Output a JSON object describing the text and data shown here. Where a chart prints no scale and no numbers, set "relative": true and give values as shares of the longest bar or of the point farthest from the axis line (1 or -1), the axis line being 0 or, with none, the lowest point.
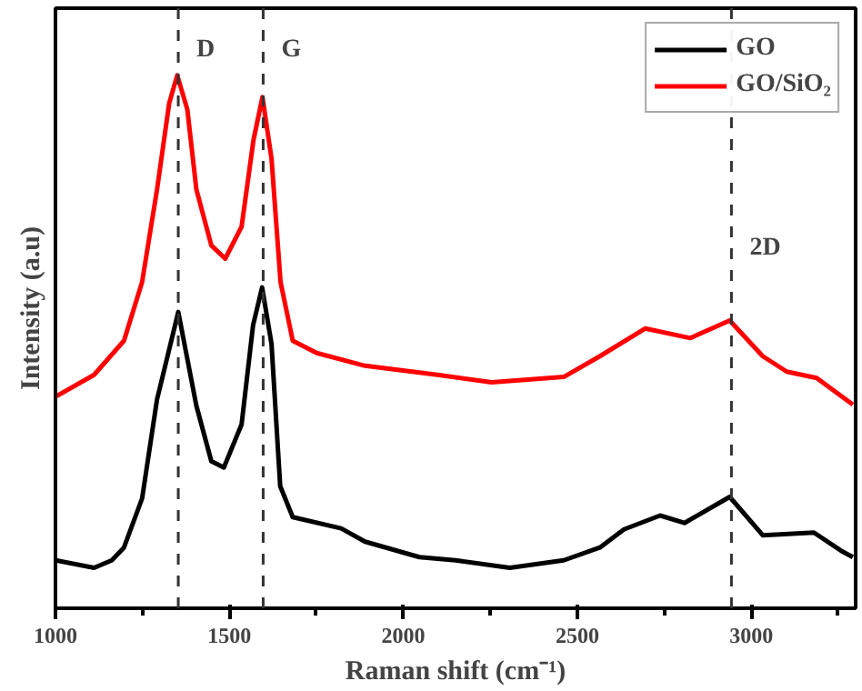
{
  "chart_data": {
    "type": "line",
    "relative": true,
    "xlabel": "Raman shift (cm⁻¹)",
    "ylabel": "Intensity (a.u)",
    "xlim": [
      1000,
      3300
    ],
    "xticks": [
      1000,
      {
        "value": 1250,
        "label": null
      },
      1500,
      {
        "value": 1750,
        "label": null
      },
      2000,
      {
        "value": 2250,
        "label": null
      },
      2500,
      {
        "value": 2750,
        "label": null
      },
      3000,
      {
        "value": 3250,
        "label": null
      }
    ],
    "legend": "top right",
    "grid": false,
    "ref_lines": [
      {
        "axis": "x",
        "value": 1353,
        "label": "D",
        "color": "#333333",
        "line_style": "dashed"
      },
      {
        "axis": "x",
        "value": 1597,
        "label": "G",
        "color": "#333333",
        "line_style": "dashed"
      },
      {
        "axis": "x",
        "value": 2943,
        "label": "2D",
        "color": "#333333",
        "line_style": "dashed"
      }
    ],
    "series": [
      {
        "name": "GO",
        "color": "#000000",
        "x": [
          1000,
          1111,
          1162,
          1197,
          1249,
          1292,
          1353,
          1405,
          1448,
          1484,
          1535,
          1568,
          1594,
          1621,
          1646,
          1682,
          1821,
          1890,
          2046,
          2150,
          2306,
          2461,
          2565,
          2634,
          2738,
          2808,
          2938,
          3033,
          3180,
          3258,
          3292
        ],
        "values": [
          0.09,
          0.076,
          0.09,
          0.114,
          0.206,
          0.392,
          0.556,
          0.38,
          0.276,
          0.264,
          0.345,
          0.531,
          0.602,
          0.496,
          0.229,
          0.171,
          0.15,
          0.125,
          0.096,
          0.09,
          0.076,
          0.09,
          0.114,
          0.148,
          0.174,
          0.16,
          0.209,
          0.137,
          0.142,
          0.108,
          0.096
        ]
      },
      {
        "name": "GO/SiO₂",
        "color": "#ff0000",
        "x": [
          1000,
          1111,
          1197,
          1249,
          1292,
          1327,
          1350,
          1379,
          1405,
          1448,
          1488,
          1535,
          1569,
          1595,
          1621,
          1647,
          1682,
          1751,
          1890,
          2098,
          2254,
          2461,
          2565,
          2695,
          2825,
          2938,
          3033,
          3102,
          3188,
          3292
        ],
        "values": [
          0.397,
          0.438,
          0.502,
          0.612,
          0.786,
          0.948,
          1.0,
          0.936,
          0.786,
          0.681,
          0.656,
          0.716,
          0.878,
          0.959,
          0.844,
          0.612,
          0.502,
          0.479,
          0.455,
          0.438,
          0.424,
          0.434,
          0.473,
          0.525,
          0.507,
          0.54,
          0.473,
          0.444,
          0.432,
          0.382
        ]
      }
    ]
  }
}
